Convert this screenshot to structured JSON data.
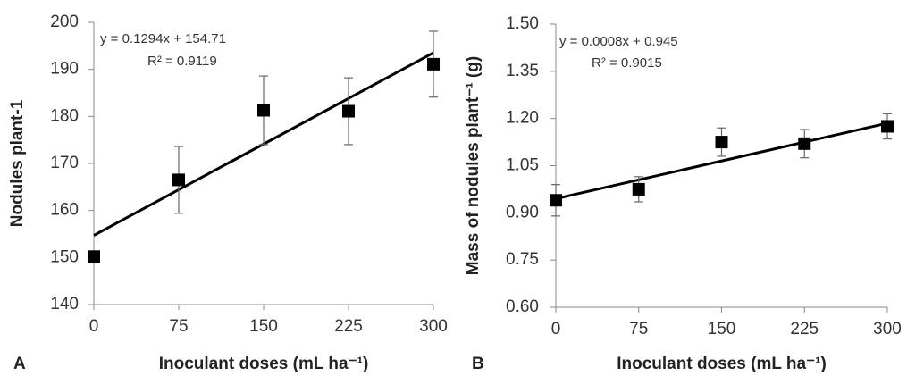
{
  "chart_data": [
    {
      "type": "scatter",
      "panel": "A",
      "y_label": "Nodules plant-1",
      "x_label": "Inoculant doses (mL ha⁻¹)",
      "x": [
        0,
        75,
        150,
        225,
        300
      ],
      "values": [
        150.2,
        166.5,
        181.3,
        181.1,
        191.1
      ],
      "errors": [
        0,
        7.1,
        7.3,
        7.1,
        7.0
      ],
      "color": "#000000",
      "xlim": [
        0,
        300
      ],
      "xticks": [
        0,
        75,
        150,
        225,
        300
      ],
      "ylim": [
        140,
        200
      ],
      "yticks": [
        140,
        150,
        160,
        170,
        180,
        190,
        200
      ],
      "trendline": {
        "equation": "y = 0.1294x + 154.71",
        "r2": "R² = 0.9119",
        "slope": 0.1294,
        "intercept": 154.71
      }
    },
    {
      "type": "scatter",
      "panel": "B",
      "y_label": "Mass of nodules plant⁻¹ (g)",
      "x_label": "Inoculant doses (mL ha⁻¹)",
      "x": [
        0,
        75,
        150,
        225,
        300
      ],
      "values": [
        0.94,
        0.975,
        1.125,
        1.12,
        1.175
      ],
      "errors": [
        0.05,
        0.04,
        0.045,
        0.045,
        0.04
      ],
      "color": "#000000",
      "xlim": [
        0,
        300
      ],
      "xticks": [
        0,
        75,
        150,
        225,
        300
      ],
      "ylim": [
        0.6,
        1.5
      ],
      "yticks": [
        {
          "value": 0.6,
          "label": "0.60"
        },
        0.75,
        {
          "value": 0.9,
          "label": "0.90"
        },
        1.05,
        {
          "value": 1.2,
          "label": "1.20"
        },
        1.35,
        {
          "value": 1.5,
          "label": "1.50"
        }
      ],
      "trendline": {
        "equation": "y = 0.0008x + 0.945",
        "r2": "R² = 0.9015",
        "slope": 0.0008,
        "intercept": 0.945
      }
    }
  ]
}
